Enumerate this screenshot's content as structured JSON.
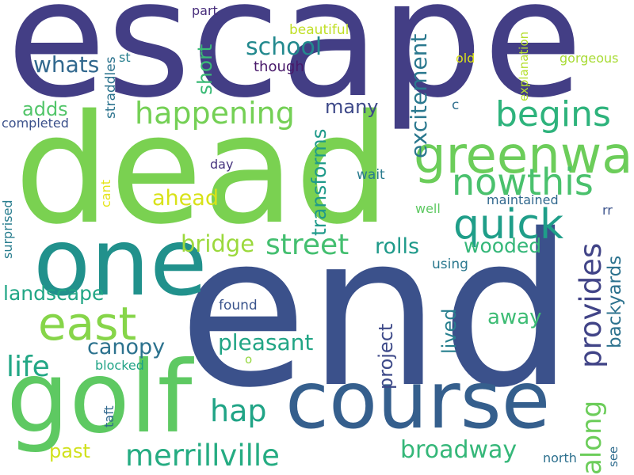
{
  "background": "#ffffff",
  "words": [
    {
      "text": "escape",
      "color": "#433e85"
    },
    {
      "text": "dead",
      "color": "#7ad151"
    },
    {
      "text": "end",
      "color": "#3b518b"
    },
    {
      "text": "one",
      "color": "#21918c"
    },
    {
      "text": "golf",
      "color": "#5ec962"
    },
    {
      "text": "course",
      "color": "#355f8d"
    },
    {
      "text": "greenway",
      "color": "#6ccd5a"
    },
    {
      "text": "east",
      "color": "#86d549"
    },
    {
      "text": "quick",
      "color": "#1f9e89"
    },
    {
      "text": "nowthis",
      "color": "#4ac16d"
    },
    {
      "text": "begins",
      "color": "#2eb37c"
    },
    {
      "text": "happening",
      "color": "#74d055"
    },
    {
      "text": "merrillville",
      "color": "#25ac82"
    },
    {
      "text": "provides",
      "color": "#414487"
    },
    {
      "text": "street",
      "color": "#44bf70"
    },
    {
      "text": "life",
      "color": "#22a785"
    },
    {
      "text": "along",
      "color": "#6ccd5a"
    },
    {
      "text": "hap",
      "color": "#20a486"
    },
    {
      "text": "broadway",
      "color": "#35b779"
    },
    {
      "text": "school",
      "color": "#23898e"
    },
    {
      "text": "whats",
      "color": "#31688e"
    },
    {
      "text": "excitement",
      "color": "#2a788e"
    },
    {
      "text": "transforms",
      "color": "#1f9a8a"
    },
    {
      "text": "short",
      "color": "#3aba76"
    },
    {
      "text": "canopy",
      "color": "#2c728e"
    },
    {
      "text": "pleasant",
      "color": "#21a585"
    },
    {
      "text": "ahead",
      "color": "#d8e219"
    },
    {
      "text": "bridge",
      "color": "#9bd93c"
    },
    {
      "text": "rolls",
      "color": "#1f9a8a"
    },
    {
      "text": "wooded",
      "color": "#35b779"
    },
    {
      "text": "landscape",
      "color": "#21a685"
    },
    {
      "text": "adds",
      "color": "#52c569"
    },
    {
      "text": "many",
      "color": "#3e4989"
    },
    {
      "text": "project",
      "color": "#3e4a89"
    },
    {
      "text": "lived",
      "color": "#277f8e"
    },
    {
      "text": "away",
      "color": "#3dbc74"
    },
    {
      "text": "backyards",
      "color": "#2c728e"
    },
    {
      "text": "past",
      "color": "#d0e11c"
    },
    {
      "text": "beautiful",
      "color": "#c0df25"
    },
    {
      "text": "part",
      "color": "#472d7b"
    },
    {
      "text": "though",
      "color": "#48186a"
    },
    {
      "text": "straddles",
      "color": "#2c738e"
    },
    {
      "text": "st",
      "color": "#277f8e"
    },
    {
      "text": "completed",
      "color": "#3b518b"
    },
    {
      "text": "explanation",
      "color": "#b5de2b"
    },
    {
      "text": "old",
      "color": "#dde318"
    },
    {
      "text": "gorgeous",
      "color": "#a8db34"
    },
    {
      "text": "c",
      "color": "#2e6f8e"
    },
    {
      "text": "day",
      "color": "#46337e"
    },
    {
      "text": "wait",
      "color": "#297b8e"
    },
    {
      "text": "cant",
      "color": "#e5e419"
    },
    {
      "text": "well",
      "color": "#5ec962"
    },
    {
      "text": "maintained",
      "color": "#31688e"
    },
    {
      "text": "rr",
      "color": "#3b528b"
    },
    {
      "text": "using",
      "color": "#2a788e"
    },
    {
      "text": "surprised",
      "color": "#287d8e"
    },
    {
      "text": "found",
      "color": "#3a548c"
    },
    {
      "text": "blocked",
      "color": "#20a386"
    },
    {
      "text": "o",
      "color": "#95d840"
    },
    {
      "text": "taft",
      "color": "#31688e"
    },
    {
      "text": "north",
      "color": "#2d708e"
    },
    {
      "text": "see",
      "color": "#2f6c8e"
    }
  ]
}
